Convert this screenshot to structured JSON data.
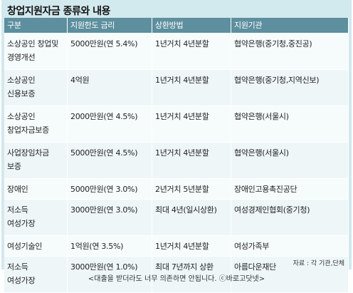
{
  "title": "창업지원자금 종류와 내용",
  "headers": [
    "구분",
    "지원한도 금리",
    "상환방법",
    "지원기관"
  ],
  "rows": [
    {
      "category": "소상공인 창업및\n경영개선",
      "limit": "5000만원(연 5.4%)",
      "repay": "1년거치 4년분할",
      "agency": "협약은행(중기청,중진공)"
    },
    {
      "category": "소상공인\n신용보증",
      "limit": "4억원",
      "repay": "1년거치 4년분할",
      "agency": "협약은행(중기청,지역신보)"
    },
    {
      "category": "소상공인\n창업자금보증",
      "limit": "2000만원(연 4.5%)",
      "repay": "1년거치 4년분할",
      "agency": "협약은행(서울시)"
    },
    {
      "category": "사업장임차금\n보증",
      "limit": "5000만원(연 4.5%)",
      "repay": "1년거치 4년분할",
      "agency": "협약은행(서울시)"
    },
    {
      "category": "장애인",
      "limit": "5000만원(연 3.0%)",
      "repay": "2년거치 5년분할",
      "agency": "장애인고용촉진공단"
    },
    {
      "category": "저소득\n여성가장",
      "limit": "3000만원(연 3.0%)",
      "repay": "최대 4년(일시상환)",
      "agency": "여성경제인협회(중기청)"
    },
    {
      "category": "여성기술인",
      "limit": "1억원(연 3.5%)",
      "repay": "1년거치 4년분할",
      "agency": "여성가족부"
    },
    {
      "category": "저소득\n여성가장",
      "limit": "3000만원(연 1.0%)",
      "repay": "최대 7년까지 상환",
      "agency": "아름다운재단"
    }
  ],
  "source": "자료 : 각 기관,단체",
  "caption": "<대출을 받더라도 너무 의존하면 안됩니다. ⓒ바로고닷넷>",
  "colors": {
    "header_bg": "#5d8f9e",
    "panel_bg": "#d2e9ee"
  }
}
